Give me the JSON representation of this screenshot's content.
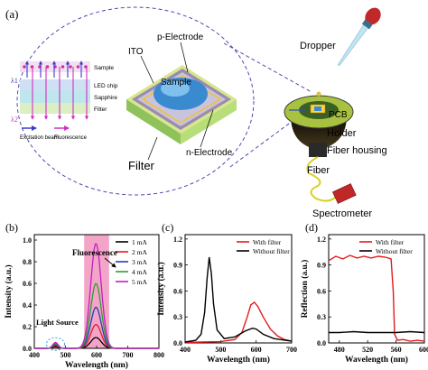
{
  "panel_a": {
    "label": "(a)",
    "schematic": {
      "labels": [
        "Sample",
        "λ1",
        "LED chip",
        "Sapphire",
        "Filter",
        "λ2"
      ],
      "legend": [
        "Excitation beam",
        "Fluorescence"
      ]
    },
    "chip_labels": [
      "ITO",
      "p-Electrode",
      "Sample",
      "n-Electrode",
      "Filter"
    ],
    "setup_labels": [
      "Dropper",
      "PCB",
      "Holder",
      "Fiber housing",
      "Fiber",
      "Spectrometer"
    ]
  },
  "chart_data": [
    {
      "panel": "(b)",
      "type": "line",
      "xlabel": "Wavelength (nm)",
      "ylabel": "Intensity (a.u.)",
      "xlim": [
        400,
        800
      ],
      "ylim": [
        0,
        1.05
      ],
      "xticks": [
        "400",
        "500",
        "600",
        "700",
        "800"
      ],
      "yticks": [
        "0.0",
        "0.2",
        "0.4",
        "0.6",
        "0.8",
        "1.0"
      ],
      "legend_position": "top-right",
      "annotations": [
        "Fluorescence",
        "Light Source"
      ],
      "shaded_band": [
        560,
        640
      ],
      "colors": [
        "#000000",
        "#e41a1c",
        "#1f3fbf",
        "#2e9e2e",
        "#c020c0"
      ],
      "series": [
        {
          "name": "1 mA",
          "peak_led": 0.015,
          "peak_fl": 0.1
        },
        {
          "name": "2 mA",
          "peak_led": 0.025,
          "peak_fl": 0.22
        },
        {
          "name": "3 mA",
          "peak_led": 0.035,
          "peak_fl": 0.38
        },
        {
          "name": "4 mA",
          "peak_led": 0.045,
          "peak_fl": 0.6
        },
        {
          "name": "5 mA",
          "peak_led": 0.055,
          "peak_fl": 0.97
        }
      ]
    },
    {
      "panel": "(c)",
      "type": "line",
      "xlabel": "Wavelength (nm)",
      "ylabel": "Intensity (a.u.)",
      "xlim": [
        400,
        700
      ],
      "ylim": [
        0,
        1.25
      ],
      "xticks": [
        "400",
        "500",
        "600",
        "700"
      ],
      "yticks": [
        "0.0",
        "0.3",
        "0.6",
        "0.9",
        "1.2"
      ],
      "legend_position": "top-right",
      "colors": [
        "#e41a1c",
        "#000000"
      ],
      "series": [
        {
          "name": "With filter",
          "x": [
            400,
            450,
            500,
            540,
            560,
            575,
            585,
            595,
            605,
            620,
            640,
            660,
            680,
            700
          ],
          "y": [
            0.005,
            0.01,
            0.015,
            0.04,
            0.12,
            0.3,
            0.44,
            0.47,
            0.42,
            0.3,
            0.16,
            0.08,
            0.04,
            0.02
          ]
        },
        {
          "name": "Without filter",
          "x": [
            400,
            430,
            445,
            455,
            462,
            468,
            474,
            480,
            490,
            510,
            540,
            570,
            590,
            600,
            620,
            650,
            700
          ],
          "y": [
            0.01,
            0.03,
            0.1,
            0.35,
            0.75,
            0.99,
            0.8,
            0.45,
            0.15,
            0.05,
            0.07,
            0.14,
            0.17,
            0.16,
            0.1,
            0.05,
            0.02
          ]
        }
      ]
    },
    {
      "panel": "(d)",
      "type": "line",
      "xlabel": "Wavelength (nm)",
      "ylabel": "Reflection (a.u.)",
      "xlim": [
        465,
        600
      ],
      "ylim": [
        0,
        1.25
      ],
      "xticks": [
        "480",
        "520",
        "560",
        "600"
      ],
      "yticks": [
        "0.0",
        "0.3",
        "0.6",
        "0.9",
        "1.2"
      ],
      "legend_position": "top-right",
      "colors": [
        "#e41a1c",
        "#000000"
      ],
      "series": [
        {
          "name": "With filter",
          "x": [
            465,
            475,
            485,
            495,
            505,
            515,
            525,
            535,
            545,
            553,
            556,
            558,
            562,
            570,
            580,
            590,
            600
          ],
          "y": [
            0.95,
            1.0,
            0.97,
            1.01,
            0.98,
            1.0,
            0.98,
            1.0,
            0.99,
            0.97,
            0.6,
            0.1,
            0.03,
            0.04,
            0.02,
            0.03,
            0.02
          ]
        },
        {
          "name": "Without filter",
          "x": [
            465,
            480,
            500,
            520,
            540,
            560,
            580,
            600
          ],
          "y": [
            0.12,
            0.12,
            0.13,
            0.12,
            0.12,
            0.12,
            0.13,
            0.12
          ]
        }
      ]
    }
  ]
}
